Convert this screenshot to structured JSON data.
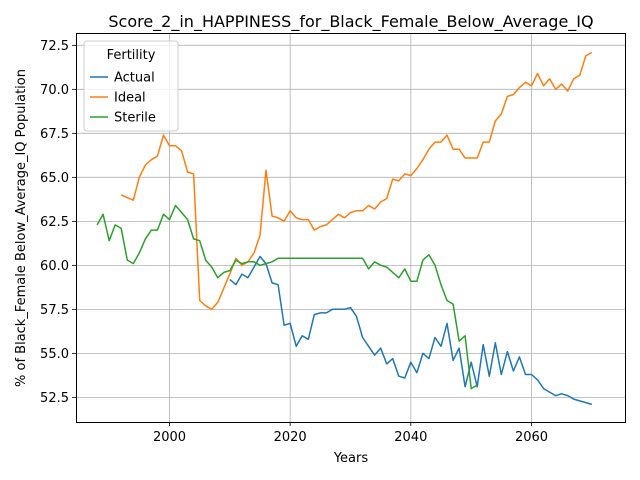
{
  "chart_data": {
    "type": "line",
    "title": "Score_2_in_HAPPINESS_for_Black_Female_Below_Average_IQ",
    "xlabel": "Years",
    "ylabel": "% of Black_Female Below_Average_IQ Population",
    "xlim": [
      1984.5,
      2075.5
    ],
    "ylim": [
      51.1,
      73.2
    ],
    "xticks": [
      2000,
      2020,
      2040,
      2060
    ],
    "yticks": [
      52.5,
      55.0,
      57.5,
      60.0,
      62.5,
      65.0,
      67.5,
      70.0,
      72.5
    ],
    "xtick_labels": [
      "2000",
      "2020",
      "2040",
      "2060"
    ],
    "ytick_labels": [
      "52.5",
      "55.0",
      "57.5",
      "60.0",
      "62.5",
      "65.0",
      "67.5",
      "70.0",
      "72.5"
    ],
    "grid": true,
    "legend": {
      "title": "Fertility",
      "placement": "top-left"
    },
    "series": [
      {
        "name": "Actual",
        "color": "#1f77b4",
        "x": [
          2010,
          2011,
          2012,
          2013,
          2014,
          2015,
          2016,
          2017,
          2018,
          2019,
          2020,
          2021,
          2022,
          2023,
          2024,
          2025,
          2026,
          2027,
          2028,
          2029,
          2030,
          2031,
          2032,
          2033,
          2034,
          2035,
          2036,
          2037,
          2038,
          2039,
          2040,
          2041,
          2042,
          2043,
          2044,
          2045,
          2046,
          2047,
          2048,
          2049,
          2050,
          2051,
          2052,
          2053,
          2054,
          2055,
          2056,
          2057,
          2058,
          2059,
          2060,
          2061,
          2062,
          2063,
          2064,
          2065,
          2066,
          2067,
          2068,
          2069,
          2070
        ],
        "values": [
          59.2,
          58.9,
          59.5,
          59.3,
          59.9,
          60.5,
          60.1,
          59.0,
          58.9,
          56.6,
          56.7,
          55.4,
          56.0,
          55.8,
          57.2,
          57.3,
          57.3,
          57.5,
          57.5,
          57.5,
          57.6,
          57.1,
          55.9,
          55.4,
          54.9,
          55.3,
          54.4,
          54.7,
          53.7,
          53.6,
          54.5,
          53.9,
          55.0,
          54.7,
          55.9,
          55.4,
          56.7,
          54.6,
          55.3,
          53.1,
          54.5,
          53.1,
          55.5,
          53.7,
          55.6,
          53.8,
          55.1,
          54.0,
          54.8,
          53.8,
          53.8,
          53.5,
          53.0,
          52.8,
          52.6,
          52.7,
          52.6,
          52.4,
          52.3,
          52.2,
          52.1
        ]
      },
      {
        "name": "Ideal",
        "color": "#ff7f0e",
        "x": [
          1992,
          1994,
          1995,
          1996,
          1997,
          1998,
          1999,
          2000,
          2001,
          2002,
          2003,
          2004,
          2005,
          2006,
          2007,
          2008,
          2009,
          2010,
          2011,
          2012,
          2013,
          2014,
          2015,
          2016,
          2017,
          2018,
          2019,
          2020,
          2021,
          2022,
          2023,
          2024,
          2025,
          2026,
          2027,
          2028,
          2029,
          2030,
          2031,
          2032,
          2033,
          2034,
          2035,
          2036,
          2037,
          2038,
          2039,
          2040,
          2041,
          2042,
          2043,
          2044,
          2045,
          2046,
          2047,
          2048,
          2049,
          2050,
          2051,
          2052,
          2053,
          2054,
          2055,
          2056,
          2057,
          2058,
          2059,
          2060,
          2061,
          2062,
          2063,
          2064,
          2065,
          2066,
          2067,
          2068,
          2069,
          2070
        ],
        "values": [
          64.0,
          63.7,
          65.0,
          65.7,
          66.0,
          66.2,
          67.4,
          66.8,
          66.8,
          66.5,
          65.3,
          65.2,
          58.0,
          57.7,
          57.5,
          57.9,
          58.7,
          59.5,
          60.4,
          60.0,
          60.2,
          60.7,
          61.7,
          65.4,
          62.8,
          62.7,
          62.5,
          63.1,
          62.7,
          62.6,
          62.6,
          62.0,
          62.2,
          62.3,
          62.6,
          62.9,
          62.7,
          63.0,
          63.1,
          63.1,
          63.4,
          63.2,
          63.6,
          63.8,
          64.9,
          64.8,
          65.2,
          65.1,
          65.5,
          66.0,
          66.6,
          67.0,
          67.0,
          67.4,
          66.6,
          66.6,
          66.1,
          66.1,
          66.1,
          67.0,
          67.0,
          68.2,
          68.6,
          69.6,
          69.7,
          70.1,
          70.4,
          70.2,
          70.9,
          70.2,
          70.6,
          70.0,
          70.3,
          69.9,
          70.6,
          70.8,
          71.9,
          72.1
        ]
      },
      {
        "name": "Sterile",
        "color": "#2ca02c",
        "x": [
          1988,
          1989,
          1990,
          1991,
          1992,
          1993,
          1994,
          1995,
          1996,
          1997,
          1998,
          1999,
          2000,
          2001,
          2002,
          2003,
          2004,
          2005,
          2006,
          2007,
          2008,
          2009,
          2010,
          2011,
          2012,
          2013,
          2014,
          2015,
          2016,
          2017,
          2018,
          2019,
          2020,
          2021,
          2022,
          2023,
          2024,
          2025,
          2026,
          2027,
          2028,
          2029,
          2030,
          2031,
          2032,
          2033,
          2034,
          2035,
          2036,
          2037,
          2038,
          2039,
          2040,
          2041,
          2042,
          2043,
          2044,
          2045,
          2046,
          2047,
          2048,
          2049,
          2050,
          2051
        ],
        "values": [
          62.3,
          62.9,
          61.4,
          62.3,
          62.1,
          60.3,
          60.1,
          60.7,
          61.5,
          62.0,
          62.0,
          62.9,
          62.6,
          63.4,
          63.0,
          62.6,
          61.5,
          61.4,
          60.3,
          59.9,
          59.3,
          59.6,
          59.7,
          60.3,
          60.1,
          60.2,
          60.2,
          60.0,
          60.1,
          60.2,
          60.4,
          60.4,
          60.4,
          60.4,
          60.4,
          60.4,
          60.4,
          60.4,
          60.4,
          60.4,
          60.4,
          60.4,
          60.4,
          60.4,
          60.4,
          59.8,
          60.2,
          60.0,
          59.9,
          59.6,
          59.3,
          59.8,
          59.1,
          59.1,
          60.3,
          60.6,
          60.0,
          58.9,
          58.0,
          57.8,
          55.7,
          56.0,
          53.0,
          53.2
        ]
      }
    ]
  }
}
